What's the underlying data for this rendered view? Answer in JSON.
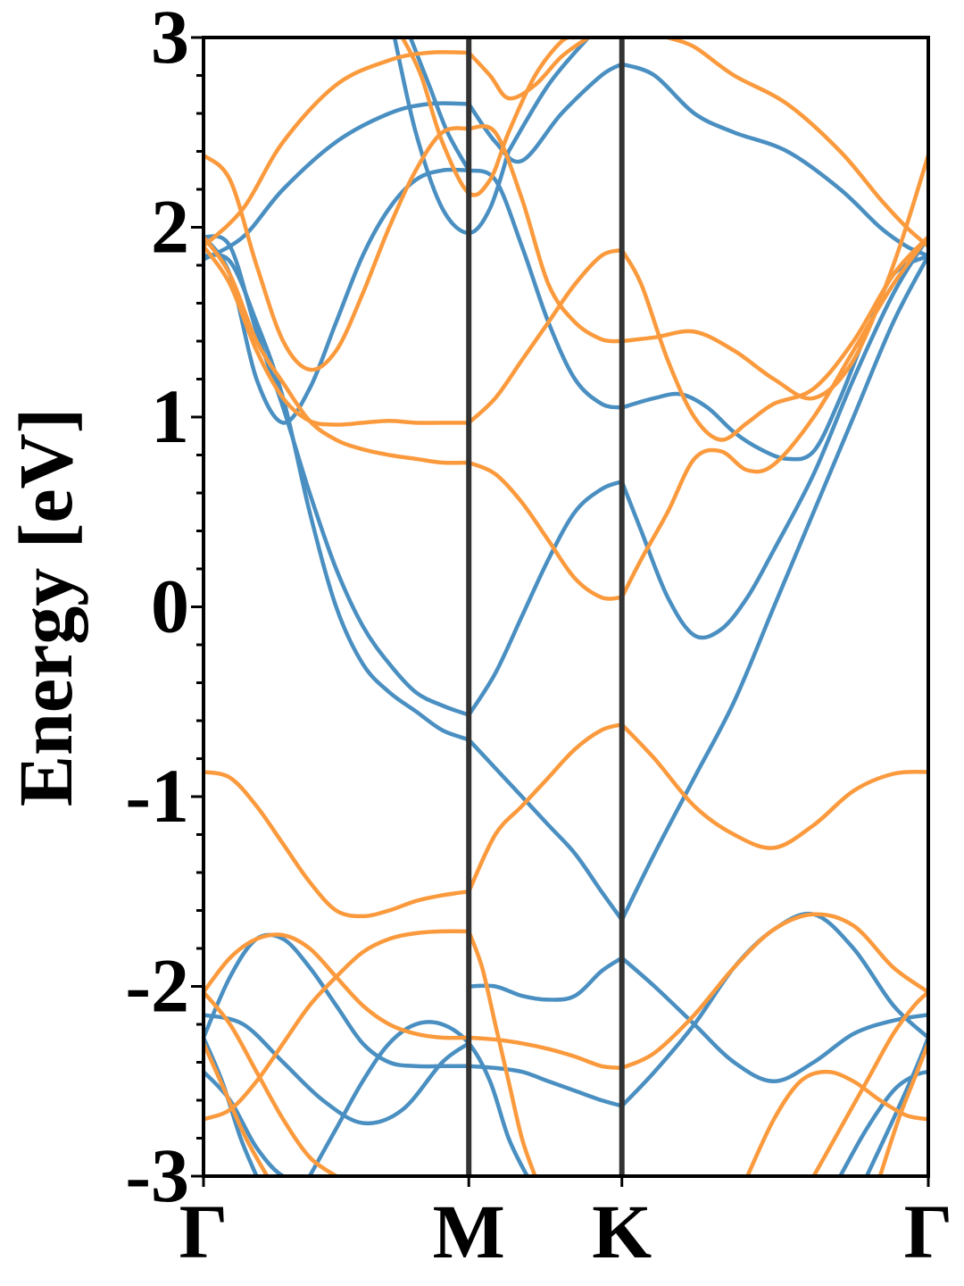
{
  "chart_data": {
    "type": "line",
    "title": "",
    "xlabel": "",
    "ylabel": "Energy [eV]",
    "ylim": [
      -3,
      3
    ],
    "grid": false,
    "legend": "none",
    "x_ticks": [
      {
        "label": "Γ",
        "x": 0
      },
      {
        "label": "M",
        "x": 1.0
      },
      {
        "label": "K",
        "x": 1.577
      },
      {
        "label": "Γ",
        "x": 2.732
      }
    ],
    "y_ticks": [
      {
        "label": "3",
        "y": 3
      },
      {
        "label": "2",
        "y": 2
      },
      {
        "label": "1",
        "y": 1
      },
      {
        "label": "0",
        "y": 0
      },
      {
        "label": "-1",
        "y": -1
      },
      {
        "label": "-2",
        "y": -2
      },
      {
        "label": "-3",
        "y": -3
      }
    ],
    "colors": {
      "blue": "#4a8fc1",
      "orange": "#fb9a3d",
      "vline": "#333333"
    },
    "series": [
      {
        "color": "blue",
        "x": [
          0,
          0.1,
          0.2,
          0.3,
          0.4,
          0.5,
          0.6,
          0.7,
          0.8,
          0.9,
          1.0
        ],
        "y": [
          1.85,
          1.82,
          1.5,
          1.1,
          0.5,
          0.0,
          -0.3,
          -0.45,
          -0.55,
          -0.65,
          -0.7
        ]
      },
      {
        "color": "blue",
        "x": [
          1.0,
          1.1,
          1.2,
          1.3,
          1.4,
          1.5,
          1.577
        ],
        "y": [
          -0.7,
          -0.85,
          -1.0,
          -1.15,
          -1.3,
          -1.5,
          -1.65
        ]
      },
      {
        "color": "blue",
        "x": [
          1.577,
          1.7,
          1.85,
          2.0,
          2.15,
          2.3,
          2.45,
          2.6,
          2.732
        ],
        "y": [
          -1.65,
          -1.3,
          -0.9,
          -0.5,
          0.0,
          0.5,
          1.0,
          1.5,
          1.85
        ]
      },
      {
        "color": "blue",
        "x": [
          0,
          0.1,
          0.2,
          0.3,
          0.4,
          0.5,
          0.6,
          0.7,
          0.8,
          0.9,
          1.0
        ],
        "y": [
          1.95,
          1.9,
          1.45,
          1.05,
          0.6,
          0.2,
          -0.1,
          -0.3,
          -0.45,
          -0.52,
          -0.57
        ]
      },
      {
        "color": "blue",
        "x": [
          1.0,
          1.1,
          1.2,
          1.3,
          1.4,
          1.5,
          1.577
        ],
        "y": [
          -0.57,
          -0.35,
          -0.05,
          0.25,
          0.5,
          0.62,
          0.66
        ]
      },
      {
        "color": "blue",
        "x": [
          1.577,
          1.65,
          1.75,
          1.85,
          1.95,
          2.05,
          2.15,
          2.3,
          2.45,
          2.6,
          2.732
        ],
        "y": [
          0.66,
          0.4,
          0.05,
          -0.15,
          -0.12,
          0.05,
          0.3,
          0.7,
          1.2,
          1.65,
          1.95
        ]
      },
      {
        "color": "blue",
        "x": [
          0,
          0.1,
          0.2,
          0.3,
          0.4,
          0.5,
          0.6,
          0.7,
          0.8,
          0.9,
          1.0
        ],
        "y": [
          1.95,
          1.75,
          1.2,
          0.97,
          1.15,
          1.5,
          1.85,
          2.1,
          2.25,
          2.3,
          2.3
        ]
      },
      {
        "color": "blue",
        "x": [
          1.0,
          1.1,
          1.2,
          1.3,
          1.4,
          1.5,
          1.577
        ],
        "y": [
          2.3,
          2.25,
          1.9,
          1.5,
          1.2,
          1.07,
          1.05
        ]
      },
      {
        "color": "blue",
        "x": [
          1.577,
          1.7,
          1.8,
          1.9,
          2.0,
          2.1,
          2.2,
          2.3,
          2.4,
          2.5,
          2.6,
          2.732
        ],
        "y": [
          1.05,
          1.1,
          1.12,
          1.05,
          0.92,
          0.83,
          0.78,
          0.82,
          1.1,
          1.45,
          1.75,
          1.85
        ]
      },
      {
        "color": "blue",
        "x": [
          0,
          0.15,
          0.3,
          0.5,
          0.7,
          0.85,
          1.0
        ],
        "y": [
          1.83,
          1.95,
          2.2,
          2.45,
          2.6,
          2.65,
          2.65
        ]
      },
      {
        "color": "blue",
        "x": [
          1.0,
          1.1,
          1.2,
          1.35,
          1.5,
          1.577
        ],
        "y": [
          2.65,
          2.45,
          2.35,
          2.6,
          2.8,
          2.86
        ]
      },
      {
        "color": "blue",
        "x": [
          1.577,
          1.7,
          1.85,
          2.0,
          2.2,
          2.4,
          2.55,
          2.65,
          2.732
        ],
        "y": [
          2.86,
          2.8,
          2.6,
          2.5,
          2.4,
          2.2,
          2.0,
          1.9,
          1.85
        ]
      },
      {
        "color": "blue",
        "x": [
          0.72,
          0.8,
          0.9,
          1.0,
          1.08,
          1.15
        ],
        "y": [
          3.0,
          2.5,
          2.1,
          1.97,
          2.1,
          2.4
        ]
      },
      {
        "color": "blue",
        "x": [
          1.15,
          1.3,
          1.45
        ],
        "y": [
          2.4,
          2.75,
          3.0
        ]
      },
      {
        "color": "blue",
        "x": [
          0.78,
          0.85,
          0.92,
          1.0
        ],
        "y": [
          3.0,
          2.75,
          2.5,
          2.3
        ]
      },
      {
        "color": "blue",
        "x": [
          0,
          0.15,
          0.3,
          0.45,
          0.6,
          0.75,
          0.9,
          1.0
        ],
        "y": [
          -2.15,
          -2.2,
          -2.4,
          -2.6,
          -2.72,
          -2.65,
          -2.4,
          -2.3
        ]
      },
      {
        "color": "blue",
        "x": [
          0,
          0.1,
          0.2,
          0.3,
          0.4,
          0.5,
          0.6,
          0.7,
          0.8,
          0.9,
          1.0
        ],
        "y": [
          -2.27,
          -1.95,
          -1.75,
          -1.75,
          -1.9,
          -2.1,
          -2.3,
          -2.4,
          -2.42,
          -2.42,
          -2.42
        ]
      },
      {
        "color": "blue",
        "x": [
          1.0,
          1.1,
          1.2,
          1.3,
          1.4,
          1.5,
          1.577
        ],
        "y": [
          -2.42,
          -2.43,
          -2.45,
          -2.5,
          -2.55,
          -2.6,
          -2.63
        ]
      },
      {
        "color": "blue",
        "x": [
          1.0,
          1.1,
          1.2,
          1.3,
          1.4,
          1.5,
          1.577
        ],
        "y": [
          -2.0,
          -2.0,
          -2.05,
          -2.07,
          -2.05,
          -1.92,
          -1.85
        ]
      },
      {
        "color": "blue",
        "x": [
          1.577,
          1.7,
          1.85,
          2.0,
          2.15,
          2.3,
          2.45,
          2.6,
          2.732
        ],
        "y": [
          -1.85,
          -2.0,
          -2.2,
          -2.4,
          -2.5,
          -2.4,
          -2.25,
          -2.18,
          -2.15
        ]
      },
      {
        "color": "blue",
        "x": [
          1.577,
          1.7,
          1.85,
          2.0,
          2.15,
          2.3,
          2.45,
          2.6,
          2.732
        ],
        "y": [
          -2.63,
          -2.45,
          -2.2,
          -1.9,
          -1.7,
          -1.62,
          -1.8,
          -2.1,
          -2.27
        ]
      },
      {
        "color": "blue",
        "x": [
          0,
          0.1,
          0.2,
          0.3,
          0.4
        ],
        "y": [
          -2.45,
          -2.6,
          -2.85,
          -3.0,
          -3.0
        ]
      },
      {
        "color": "blue",
        "x": [
          0,
          0.07,
          0.14,
          0.2
        ],
        "y": [
          -2.27,
          -2.5,
          -2.8,
          -3.0
        ]
      },
      {
        "color": "blue",
        "x": [
          0.4,
          0.5,
          0.6,
          0.7,
          0.8,
          0.9,
          1.0,
          1.08,
          1.15,
          1.22
        ],
        "y": [
          -3.0,
          -2.75,
          -2.5,
          -2.3,
          -2.2,
          -2.2,
          -2.3,
          -2.5,
          -2.8,
          -3.0
        ]
      },
      {
        "color": "blue",
        "x": [
          2.4,
          2.5,
          2.6,
          2.68,
          2.732
        ],
        "y": [
          -3.0,
          -2.75,
          -2.55,
          -2.47,
          -2.45
        ]
      },
      {
        "color": "blue",
        "x": [
          2.5,
          2.6,
          2.68,
          2.732
        ],
        "y": [
          -3.0,
          -2.7,
          -2.45,
          -2.27
        ]
      },
      {
        "color": "orange",
        "x": [
          0,
          0.1,
          0.2,
          0.3,
          0.4,
          0.5,
          0.6,
          0.7,
          0.8,
          0.9,
          1.0
        ],
        "y": [
          -0.87,
          -0.9,
          -1.05,
          -1.25,
          -1.45,
          -1.6,
          -1.63,
          -1.6,
          -1.55,
          -1.52,
          -1.5
        ]
      },
      {
        "color": "orange",
        "x": [
          1.0,
          1.1,
          1.2,
          1.3,
          1.4,
          1.5,
          1.577
        ],
        "y": [
          -1.5,
          -1.2,
          -1.05,
          -0.9,
          -0.75,
          -0.65,
          -0.62
        ]
      },
      {
        "color": "orange",
        "x": [
          1.577,
          1.7,
          1.85,
          2.0,
          2.15,
          2.3,
          2.45,
          2.6,
          2.732
        ],
        "y": [
          -0.62,
          -0.8,
          -1.05,
          -1.2,
          -1.27,
          -1.15,
          -0.97,
          -0.88,
          -0.87
        ]
      },
      {
        "color": "orange",
        "x": [
          0,
          0.1,
          0.2,
          0.3,
          0.4,
          0.5,
          0.6,
          0.7,
          0.8,
          0.9,
          1.0
        ],
        "y": [
          1.9,
          1.7,
          1.35,
          1.1,
          0.98,
          0.96,
          0.97,
          0.98,
          0.97,
          0.97,
          0.97
        ]
      },
      {
        "color": "orange",
        "x": [
          1.0,
          1.1,
          1.2,
          1.3,
          1.4,
          1.5,
          1.577
        ],
        "y": [
          0.97,
          1.1,
          1.3,
          1.5,
          1.7,
          1.85,
          1.88
        ]
      },
      {
        "color": "orange",
        "x": [
          1.577,
          1.65,
          1.75,
          1.85,
          1.95,
          2.05,
          2.15,
          2.3,
          2.45,
          2.6,
          2.732
        ],
        "y": [
          1.88,
          1.7,
          1.3,
          1.0,
          0.88,
          0.97,
          1.07,
          1.15,
          1.4,
          1.75,
          1.95
        ]
      },
      {
        "color": "orange",
        "x": [
          0,
          0.1,
          0.2,
          0.3,
          0.4,
          0.5,
          0.6,
          0.7,
          0.8,
          0.9,
          1.0
        ],
        "y": [
          1.95,
          1.75,
          1.4,
          1.18,
          0.98,
          0.88,
          0.83,
          0.8,
          0.78,
          0.76,
          0.76
        ]
      },
      {
        "color": "orange",
        "x": [
          1.0,
          1.1,
          1.2,
          1.3,
          1.4,
          1.5,
          1.577
        ],
        "y": [
          0.76,
          0.7,
          0.55,
          0.35,
          0.15,
          0.05,
          0.05
        ]
      },
      {
        "color": "orange",
        "x": [
          1.577,
          1.65,
          1.75,
          1.85,
          1.95,
          2.05,
          2.15,
          2.3,
          2.45,
          2.6,
          2.732
        ],
        "y": [
          0.05,
          0.25,
          0.5,
          0.78,
          0.82,
          0.72,
          0.75,
          1.0,
          1.35,
          1.7,
          1.95
        ]
      },
      {
        "color": "orange",
        "x": [
          0,
          0.1,
          0.2,
          0.3,
          0.4,
          0.5,
          0.6,
          0.7,
          0.8,
          0.9,
          1.0
        ],
        "y": [
          2.38,
          2.25,
          1.8,
          1.4,
          1.25,
          1.35,
          1.65,
          2.0,
          2.3,
          2.5,
          2.52
        ]
      },
      {
        "color": "orange",
        "x": [
          1.0,
          1.1,
          1.2,
          1.3,
          1.4,
          1.5,
          1.577
        ],
        "y": [
          2.52,
          2.5,
          2.15,
          1.7,
          1.5,
          1.41,
          1.4
        ]
      },
      {
        "color": "orange",
        "x": [
          1.577,
          1.7,
          1.85,
          2.0,
          2.15,
          2.3,
          2.45,
          2.6,
          2.732
        ],
        "y": [
          1.4,
          1.42,
          1.45,
          1.35,
          1.2,
          1.1,
          1.3,
          1.8,
          2.38
        ]
      },
      {
        "color": "orange",
        "x": [
          0,
          0.15,
          0.3,
          0.5,
          0.7,
          0.85,
          1.0
        ],
        "y": [
          1.9,
          2.1,
          2.45,
          2.75,
          2.88,
          2.92,
          2.92
        ]
      },
      {
        "color": "orange",
        "x": [
          1.0,
          1.08,
          1.15,
          1.25,
          1.35,
          1.45
        ],
        "y": [
          2.92,
          2.8,
          2.68,
          2.75,
          2.9,
          3.0
        ]
      },
      {
        "color": "orange",
        "x": [
          1.75,
          1.85,
          2.0,
          2.2,
          2.4,
          2.55,
          2.65,
          2.732
        ],
        "y": [
          3.0,
          2.95,
          2.8,
          2.65,
          2.4,
          2.15,
          2.0,
          1.9
        ]
      },
      {
        "color": "orange",
        "x": [
          0.75,
          0.82,
          0.9,
          1.0,
          1.08,
          1.15,
          1.25,
          1.35,
          1.4
        ],
        "y": [
          3.0,
          2.8,
          2.45,
          2.18,
          2.25,
          2.5,
          2.8,
          2.98,
          3.0
        ]
      },
      {
        "color": "orange",
        "x": [
          0,
          0.1,
          0.2,
          0.3,
          0.4,
          0.5,
          0.6,
          0.7,
          0.8,
          0.9,
          1.0
        ],
        "y": [
          -2.03,
          -1.85,
          -1.75,
          -1.73,
          -1.8,
          -1.95,
          -2.1,
          -2.2,
          -2.25,
          -2.27,
          -2.27
        ]
      },
      {
        "color": "orange",
        "x": [
          1.0,
          1.1,
          1.2,
          1.3,
          1.4,
          1.5,
          1.577
        ],
        "y": [
          -2.27,
          -2.28,
          -2.3,
          -2.33,
          -2.37,
          -2.42,
          -2.43
        ]
      },
      {
        "color": "orange",
        "x": [
          1.577,
          1.7,
          1.85,
          2.0,
          2.15,
          2.3,
          2.45,
          2.6,
          2.732
        ],
        "y": [
          -2.43,
          -2.35,
          -2.15,
          -1.9,
          -1.7,
          -1.62,
          -1.68,
          -1.9,
          -2.03
        ]
      },
      {
        "color": "orange",
        "x": [
          0,
          0.1,
          0.2,
          0.3,
          0.4,
          0.5,
          0.6,
          0.7,
          0.8,
          0.9,
          1.0
        ],
        "y": [
          -2.7,
          -2.65,
          -2.5,
          -2.3,
          -2.1,
          -1.95,
          -1.82,
          -1.75,
          -1.72,
          -1.71,
          -1.71
        ]
      },
      {
        "color": "orange",
        "x": [
          1.0,
          1.05,
          1.1,
          1.15,
          1.2,
          1.25
        ],
        "y": [
          -1.71,
          -1.9,
          -2.2,
          -2.5,
          -2.8,
          -3.0
        ]
      },
      {
        "color": "orange",
        "x": [
          2.05,
          2.15,
          2.25,
          2.35,
          2.45,
          2.55,
          2.65,
          2.732
        ],
        "y": [
          -3.0,
          -2.7,
          -2.5,
          -2.45,
          -2.5,
          -2.6,
          -2.68,
          -2.7
        ]
      },
      {
        "color": "orange",
        "x": [
          0,
          0.1,
          0.2,
          0.3,
          0.4,
          0.5
        ],
        "y": [
          -2.03,
          -2.2,
          -2.45,
          -2.7,
          -2.9,
          -3.0
        ]
      },
      {
        "color": "orange",
        "x": [
          0,
          0.08,
          0.16,
          0.24
        ],
        "y": [
          -2.3,
          -2.55,
          -2.8,
          -3.0
        ]
      },
      {
        "color": "orange",
        "x": [
          2.3,
          2.4,
          2.5,
          2.6,
          2.68,
          2.732
        ],
        "y": [
          -3.0,
          -2.75,
          -2.5,
          -2.25,
          -2.1,
          -2.03
        ]
      },
      {
        "color": "orange",
        "x": [
          2.55,
          2.62,
          2.69,
          2.732
        ],
        "y": [
          -3.0,
          -2.7,
          -2.45,
          -2.3
        ]
      }
    ]
  }
}
